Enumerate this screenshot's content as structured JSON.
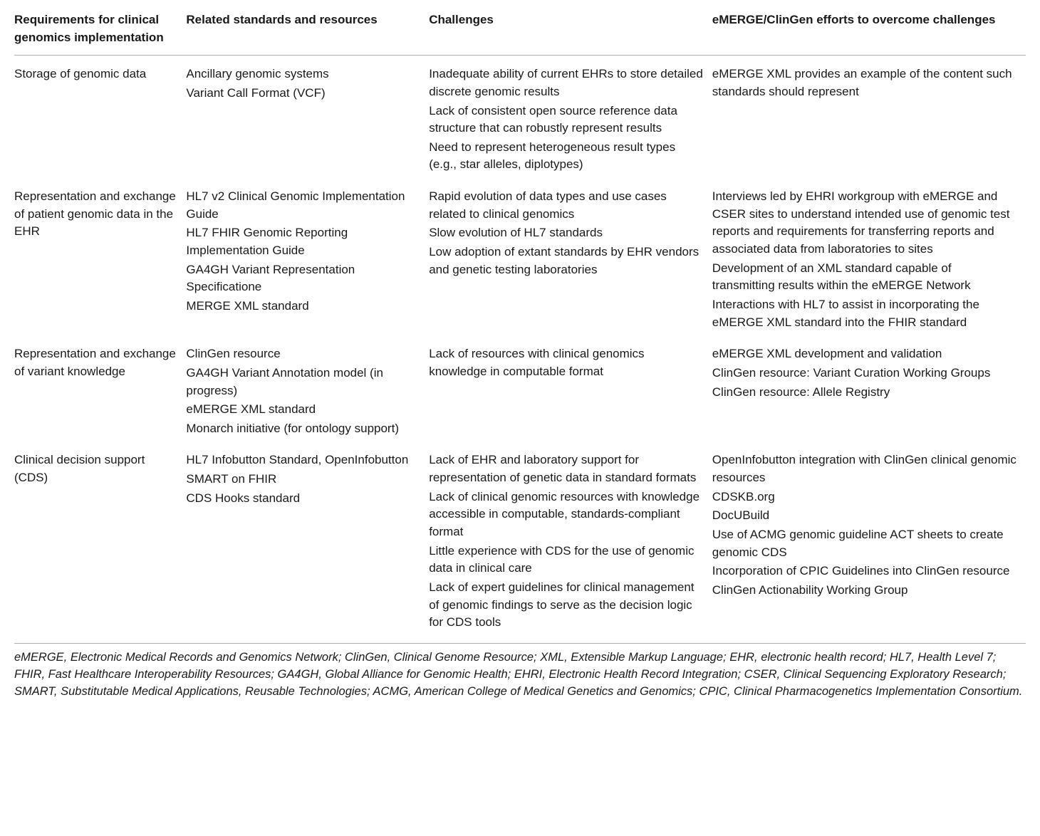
{
  "table": {
    "headers": [
      "Requirements for clinical genomics implementation",
      "Related standards and resources",
      "Challenges",
      "eMERGE/ClinGen efforts to overcome challenges"
    ],
    "rows": [
      {
        "c1": [
          "Storage of genomic data"
        ],
        "c2": [
          "Ancillary genomic systems",
          "Variant Call Format (VCF)"
        ],
        "c3": [
          "Inadequate ability of current EHRs to store detailed discrete genomic results",
          "Lack of consistent open source reference data structure that can robustly represent results",
          "Need to represent heterogeneous result types (e.g., star alleles, diplotypes)"
        ],
        "c4": [
          "eMERGE XML provides an example of the content such standards should represent"
        ]
      },
      {
        "c1": [
          "Representation and exchange of patient genomic data in the EHR"
        ],
        "c2": [
          "HL7 v2 Clinical Genomic Implementation Guide",
          "HL7 FHIR Genomic Reporting Implementation Guide",
          "GA4GH Variant Representation Specificatione",
          "MERGE XML standard"
        ],
        "c3": [
          "Rapid evolution of data types and use cases related to clinical genomics",
          "Slow evolution of HL7 standards",
          "Low adoption of extant standards by EHR vendors and genetic testing laboratories"
        ],
        "c4": [
          "Interviews led by EHRI workgroup with eMERGE and CSER sites to understand intended use of genomic test reports and requirements for transferring reports and associated data from laboratories to sites",
          "Development of an XML standard capable of transmitting results within the eMERGE Network",
          "Interactions with HL7 to assist in incorporating the eMERGE XML standard into the FHIR standard"
        ]
      },
      {
        "c1": [
          "Representation and exchange of variant knowledge"
        ],
        "c2": [
          "ClinGen resource",
          "GA4GH Variant Annotation model (in progress)",
          "eMERGE XML standard",
          "Monarch initiative (for ontology support)"
        ],
        "c3": [
          "Lack of resources with clinical genomics knowledge in computable format"
        ],
        "c4": [
          "eMERGE XML development and validation",
          "ClinGen resource: Variant Curation Working Groups",
          "ClinGen resource: Allele Registry"
        ]
      },
      {
        "c1": [
          "Clinical decision support (CDS)"
        ],
        "c2": [
          "HL7 Infobutton Standard, OpenInfobutton",
          "SMART on FHIR",
          "CDS Hooks standard"
        ],
        "c3": [
          "Lack of EHR and laboratory support for representation of genetic data in standard formats",
          "Lack of clinical genomic resources with knowledge accessible in computable, standards-compliant format",
          "Little experience with CDS for the use of genomic data in clinical care",
          "Lack of expert guidelines for clinical management of genomic findings to serve as the decision logic for CDS tools"
        ],
        "c4": [
          "OpenInfobutton integration with ClinGen clinical genomic resources",
          "CDSKB.org",
          "DocUBuild",
          "Use of ACMG genomic guideline ACT sheets to create genomic CDS",
          "Incorporation of CPIC Guidelines into ClinGen resource",
          "ClinGen Actionability Working Group"
        ]
      }
    ]
  },
  "footnote": "eMERGE, Electronic Medical Records and Genomics Network; ClinGen, Clinical Genome Resource; XML, Extensible Markup Language; EHR, electronic health record; HL7, Health Level 7; FHIR, Fast Healthcare Interoperability Resources; GA4GH, Global Alliance for Genomic Health; EHRI, Electronic Health Record Integration; CSER, Clinical Sequencing Exploratory Research; SMART, Substitutable Medical Applications, Reusable Technologies; ACMG, American College of Medical Genetics and Genomics; CPIC, Clinical Pharmacogenetics Implementation Consortium."
}
